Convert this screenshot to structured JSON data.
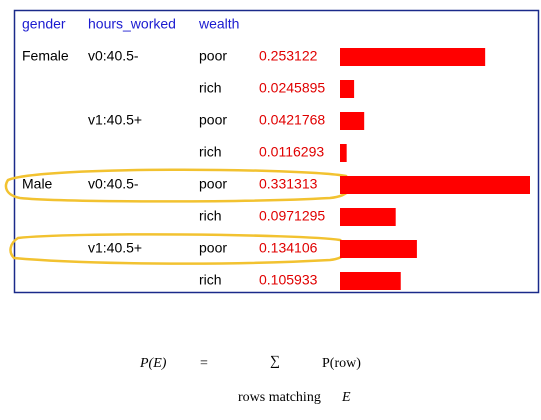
{
  "header": [
    "gender",
    "hours_worked",
    "wealth"
  ],
  "groups": [
    {
      "gender": "Female",
      "subgroups": [
        {
          "hours": "v0:40.5-",
          "rows": [
            {
              "wealth": "poor",
              "p": 0.253122
            },
            {
              "wealth": "rich",
              "p": 0.0245895
            }
          ]
        },
        {
          "hours": "v1:40.5+",
          "rows": [
            {
              "wealth": "poor",
              "p": 0.0421768
            },
            {
              "wealth": "rich",
              "p": 0.0116293
            }
          ]
        }
      ]
    },
    {
      "gender": "Male",
      "subgroups": [
        {
          "hours": "v0:40.5-",
          "rows": [
            {
              "wealth": "poor",
              "p": 0.331313
            },
            {
              "wealth": "rich",
              "p": 0.0971295
            }
          ]
        },
        {
          "hours": "v1:40.5+",
          "rows": [
            {
              "wealth": "poor",
              "p": 0.134106
            },
            {
              "wealth": "rich",
              "p": 0.105933
            }
          ]
        }
      ]
    }
  ],
  "formula": {
    "lhs": "P(E)",
    "eq": "=",
    "sum": "∑",
    "rhs": "P(row)",
    "under": "rows matching",
    "under_var": "E"
  }
}
